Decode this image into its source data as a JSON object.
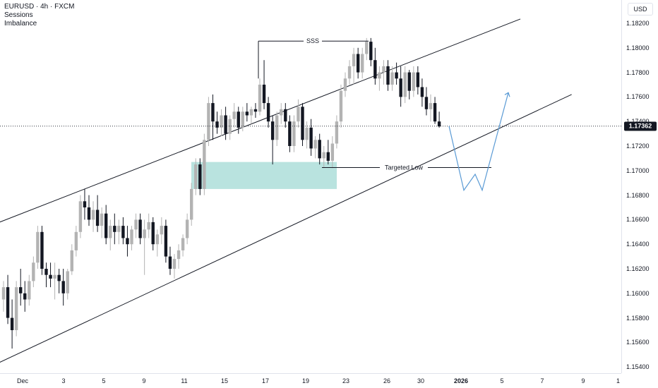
{
  "legend": {
    "symbol": "EURUSD · 4h · FXCM",
    "indicators": [
      "Sessions",
      "Imbalance"
    ]
  },
  "price_axis": {
    "currency": "USD",
    "current_price": "1.17362",
    "current_price_value": 1.17362,
    "ticks": [
      "1.18200",
      "1.18000",
      "1.17800",
      "1.17600",
      "1.17400",
      "1.17200",
      "1.17000",
      "1.16800",
      "1.16600",
      "1.16400",
      "1.16200",
      "1.16000",
      "1.15800",
      "1.15600",
      "1.15400"
    ]
  },
  "time_axis": {
    "labels": [
      {
        "text": "Dec",
        "bold": false
      },
      {
        "text": "3",
        "bold": false
      },
      {
        "text": "5",
        "bold": false
      },
      {
        "text": "9",
        "bold": false
      },
      {
        "text": "11",
        "bold": false
      },
      {
        "text": "15",
        "bold": false
      },
      {
        "text": "17",
        "bold": false
      },
      {
        "text": "19",
        "bold": false
      },
      {
        "text": "23",
        "bold": false
      },
      {
        "text": "26",
        "bold": false
      },
      {
        "text": "30",
        "bold": false
      },
      {
        "text": "2026",
        "bold": true
      },
      {
        "text": "5",
        "bold": false
      },
      {
        "text": "7",
        "bold": false
      },
      {
        "text": "9",
        "bold": false
      },
      {
        "text": "1",
        "bold": false
      }
    ]
  },
  "annotations": {
    "sss_label": "SSS",
    "sss_price": 1.18055,
    "targeted_low_label": "Targeted Low",
    "targeted_low_price": 1.17025,
    "imbalance_zone": {
      "top": 1.1707,
      "bottom": 1.1685
    },
    "channel_upper": [
      {
        "bar": -2,
        "price": 1.16565
      },
      {
        "bar": 121,
        "price": 1.18235
      }
    ],
    "channel_lower": [
      {
        "bar": -2,
        "price": 1.1542
      },
      {
        "bar": 133,
        "price": 1.1762
      }
    ],
    "projection": [
      1.17362,
      1.1684,
      1.1697,
      1.1684,
      1.17635
    ]
  },
  "colors": {
    "candle": "#b3b3b3",
    "candle_dark": "#131722",
    "imbalance_fill": "#a8dcd7",
    "projection": "#5b9bd5",
    "channel": "#131722"
  },
  "chart_data": {
    "type": "candlestick",
    "title": "EURUSD · 4h · FXCM",
    "ylim": [
      1.1535,
      1.1832
    ],
    "x": "4h bars from Dec 1 to Dec 31",
    "series": [
      {
        "name": "EURUSD",
        "candles": [
          [
            1.1595,
            1.161,
            1.1585,
            1.1605
          ],
          [
            1.1605,
            1.1615,
            1.1575,
            1.158
          ],
          [
            1.158,
            1.1595,
            1.1555,
            1.157
          ],
          [
            1.157,
            1.161,
            1.1565,
            1.1605
          ],
          [
            1.1605,
            1.162,
            1.159,
            1.16
          ],
          [
            1.16,
            1.161,
            1.1585,
            1.1595
          ],
          [
            1.1595,
            1.1615,
            1.159,
            1.161
          ],
          [
            1.161,
            1.163,
            1.1605,
            1.1625
          ],
          [
            1.1625,
            1.1655,
            1.162,
            1.165
          ],
          [
            1.165,
            1.1655,
            1.1615,
            1.162
          ],
          [
            1.162,
            1.1625,
            1.1605,
            1.1615
          ],
          [
            1.1615,
            1.1625,
            1.1605,
            1.1612
          ],
          [
            1.1612,
            1.1625,
            1.1595,
            1.1615
          ],
          [
            1.1615,
            1.162,
            1.16,
            1.161
          ],
          [
            1.161,
            1.162,
            1.159,
            1.16
          ],
          [
            1.16,
            1.162,
            1.1595,
            1.1618
          ],
          [
            1.1618,
            1.164,
            1.1615,
            1.1635
          ],
          [
            1.1635,
            1.1655,
            1.163,
            1.165
          ],
          [
            1.165,
            1.168,
            1.1645,
            1.1675
          ],
          [
            1.1675,
            1.1685,
            1.166,
            1.167
          ],
          [
            1.167,
            1.168,
            1.1655,
            1.166
          ],
          [
            1.166,
            1.1675,
            1.165,
            1.1668
          ],
          [
            1.1668,
            1.168,
            1.165,
            1.1655
          ],
          [
            1.1655,
            1.167,
            1.1645,
            1.1665
          ],
          [
            1.1665,
            1.1672,
            1.164,
            1.1645
          ],
          [
            1.1645,
            1.166,
            1.1635,
            1.1655
          ],
          [
            1.1655,
            1.1665,
            1.164,
            1.165
          ],
          [
            1.165,
            1.166,
            1.164,
            1.1655
          ],
          [
            1.1655,
            1.1662,
            1.164,
            1.1645
          ],
          [
            1.1645,
            1.1655,
            1.163,
            1.164
          ],
          [
            1.164,
            1.1655,
            1.1635,
            1.1652
          ],
          [
            1.1652,
            1.1665,
            1.1645,
            1.166
          ],
          [
            1.166,
            1.1665,
            1.164,
            1.1645
          ],
          [
            1.1645,
            1.166,
            1.1615,
            1.1652
          ],
          [
            1.1652,
            1.1665,
            1.1645,
            1.1658
          ],
          [
            1.1658,
            1.1662,
            1.1635,
            1.164
          ],
          [
            1.164,
            1.1652,
            1.163,
            1.1648
          ],
          [
            1.1648,
            1.1662,
            1.164,
            1.1655
          ],
          [
            1.1655,
            1.166,
            1.1625,
            1.163
          ],
          [
            1.163,
            1.1638,
            1.1615,
            1.162
          ],
          [
            1.162,
            1.1632,
            1.1612,
            1.1628
          ],
          [
            1.1628,
            1.164,
            1.162,
            1.1635
          ],
          [
            1.1635,
            1.1648,
            1.163,
            1.1645
          ],
          [
            1.1645,
            1.1665,
            1.164,
            1.166
          ],
          [
            1.166,
            1.169,
            1.1655,
            1.1685
          ],
          [
            1.1685,
            1.171,
            1.168,
            1.1705
          ],
          [
            1.1705,
            1.171,
            1.168,
            1.1685
          ],
          [
            1.1685,
            1.173,
            1.168,
            1.1725
          ],
          [
            1.1725,
            1.176,
            1.172,
            1.1755
          ],
          [
            1.1755,
            1.1762,
            1.1725,
            1.174
          ],
          [
            1.174,
            1.1748,
            1.173,
            1.1735
          ],
          [
            1.1735,
            1.175,
            1.1728,
            1.1745
          ],
          [
            1.1745,
            1.1752,
            1.1725,
            1.173
          ],
          [
            1.173,
            1.1745,
            1.1725,
            1.1742
          ],
          [
            1.1742,
            1.1755,
            1.1735,
            1.1748
          ],
          [
            1.1748,
            1.1752,
            1.173,
            1.1735
          ],
          [
            1.1735,
            1.1752,
            1.1732,
            1.1748
          ],
          [
            1.1748,
            1.1755,
            1.174,
            1.1745
          ],
          [
            1.1745,
            1.1752,
            1.1738,
            1.175
          ],
          [
            1.175,
            1.1755,
            1.1743,
            1.1748
          ],
          [
            1.1748,
            1.1775,
            1.1745,
            1.177
          ],
          [
            1.177,
            1.179,
            1.175,
            1.1755
          ],
          [
            1.1755,
            1.176,
            1.1735,
            1.174
          ],
          [
            1.174,
            1.1745,
            1.1705,
            1.1725
          ],
          [
            1.1725,
            1.1748,
            1.172,
            1.1745
          ],
          [
            1.1745,
            1.1755,
            1.1738,
            1.175
          ],
          [
            1.175,
            1.1755,
            1.1735,
            1.174
          ],
          [
            1.174,
            1.1745,
            1.1715,
            1.172
          ],
          [
            1.172,
            1.1745,
            1.1715,
            1.174
          ],
          [
            1.174,
            1.1758,
            1.1735,
            1.1752
          ],
          [
            1.1752,
            1.1755,
            1.172,
            1.1725
          ],
          [
            1.1725,
            1.174,
            1.1718,
            1.1735
          ],
          [
            1.1735,
            1.1742,
            1.1712,
            1.1718
          ],
          [
            1.1718,
            1.1728,
            1.171,
            1.1725
          ],
          [
            1.1725,
            1.173,
            1.1705,
            1.171
          ],
          [
            1.171,
            1.172,
            1.1702,
            1.1715
          ],
          [
            1.1715,
            1.1725,
            1.1705,
            1.1708
          ],
          [
            1.1708,
            1.1728,
            1.1702,
            1.1722
          ],
          [
            1.1722,
            1.1745,
            1.1718,
            1.174
          ],
          [
            1.174,
            1.177,
            1.1735,
            1.1765
          ],
          [
            1.1765,
            1.178,
            1.176,
            1.1775
          ],
          [
            1.1775,
            1.179,
            1.177,
            1.1785
          ],
          [
            1.1785,
            1.18,
            1.177,
            1.1795
          ],
          [
            1.1795,
            1.18,
            1.1775,
            1.178
          ],
          [
            1.178,
            1.18,
            1.1775,
            1.1795
          ],
          [
            1.1795,
            1.1808,
            1.179,
            1.1805
          ],
          [
            1.1805,
            1.1808,
            1.1785,
            1.179
          ],
          [
            1.179,
            1.18,
            1.177,
            1.1775
          ],
          [
            1.1775,
            1.1785,
            1.1765,
            1.178
          ],
          [
            1.178,
            1.179,
            1.177,
            1.1785
          ],
          [
            1.1785,
            1.179,
            1.1765,
            1.177
          ],
          [
            1.177,
            1.1785,
            1.1765,
            1.178
          ],
          [
            1.178,
            1.1788,
            1.177,
            1.1775
          ],
          [
            1.1775,
            1.1785,
            1.1752,
            1.176
          ],
          [
            1.176,
            1.1785,
            1.1755,
            1.178
          ],
          [
            1.178,
            1.1782,
            1.1758,
            1.1765
          ],
          [
            1.1765,
            1.1785,
            1.176,
            1.178
          ],
          [
            1.178,
            1.1785,
            1.1762,
            1.1768
          ],
          [
            1.1768,
            1.1775,
            1.1752,
            1.176
          ],
          [
            1.176,
            1.1768,
            1.1745,
            1.175
          ],
          [
            1.175,
            1.1762,
            1.174,
            1.1755
          ],
          [
            1.1755,
            1.176,
            1.1738,
            1.174
          ],
          [
            1.174,
            1.1748,
            1.1735,
            1.1736
          ]
        ]
      }
    ]
  }
}
